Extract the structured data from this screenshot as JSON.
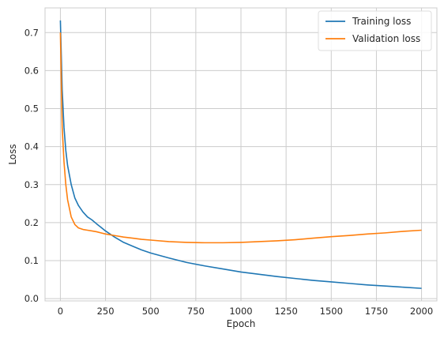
{
  "chart_data": {
    "type": "line",
    "title": "",
    "xlabel": "Epoch",
    "ylabel": "Loss",
    "xlim": [
      -85,
      2085
    ],
    "ylim": [
      -0.006,
      0.765
    ],
    "xticks": [
      0,
      250,
      500,
      750,
      1000,
      1250,
      1500,
      1750,
      2000
    ],
    "xtick_labels": [
      "0",
      "250",
      "500",
      "750",
      "1000",
      "1250",
      "1500",
      "1750",
      "2000"
    ],
    "yticks": [
      0.0,
      0.1,
      0.2,
      0.3,
      0.4,
      0.5,
      0.6,
      0.7
    ],
    "ytick_labels": [
      "0.0",
      "0.1",
      "0.2",
      "0.3",
      "0.4",
      "0.5",
      "0.6",
      "0.7"
    ],
    "grid": true,
    "legend_position": "top-right",
    "series": [
      {
        "name": "Training loss",
        "color": "#1f77b4",
        "x": [
          0,
          10,
          20,
          30,
          40,
          60,
          80,
          100,
          125,
          150,
          175,
          200,
          250,
          300,
          350,
          400,
          450,
          500,
          600,
          700,
          800,
          900,
          1000,
          1100,
          1200,
          1300,
          1400,
          1500,
          1600,
          1700,
          1800,
          1900,
          2000
        ],
        "y": [
          0.732,
          0.55,
          0.45,
          0.39,
          0.35,
          0.3,
          0.265,
          0.245,
          0.228,
          0.215,
          0.207,
          0.197,
          0.178,
          0.162,
          0.148,
          0.138,
          0.128,
          0.12,
          0.107,
          0.095,
          0.086,
          0.078,
          0.07,
          0.064,
          0.058,
          0.053,
          0.048,
          0.044,
          0.04,
          0.036,
          0.033,
          0.03,
          0.027
        ]
      },
      {
        "name": "Validation loss",
        "color": "#ff7f0e",
        "x": [
          0,
          10,
          20,
          30,
          40,
          60,
          80,
          100,
          125,
          150,
          175,
          200,
          250,
          300,
          350,
          400,
          450,
          500,
          600,
          700,
          800,
          900,
          1000,
          1100,
          1200,
          1300,
          1400,
          1500,
          1600,
          1700,
          1800,
          1900,
          2000
        ],
        "y": [
          0.7,
          0.45,
          0.36,
          0.3,
          0.26,
          0.215,
          0.195,
          0.186,
          0.182,
          0.18,
          0.178,
          0.176,
          0.17,
          0.166,
          0.162,
          0.159,
          0.156,
          0.154,
          0.15,
          0.148,
          0.147,
          0.147,
          0.148,
          0.15,
          0.152,
          0.155,
          0.159,
          0.163,
          0.166,
          0.17,
          0.173,
          0.177,
          0.18
        ]
      }
    ]
  }
}
